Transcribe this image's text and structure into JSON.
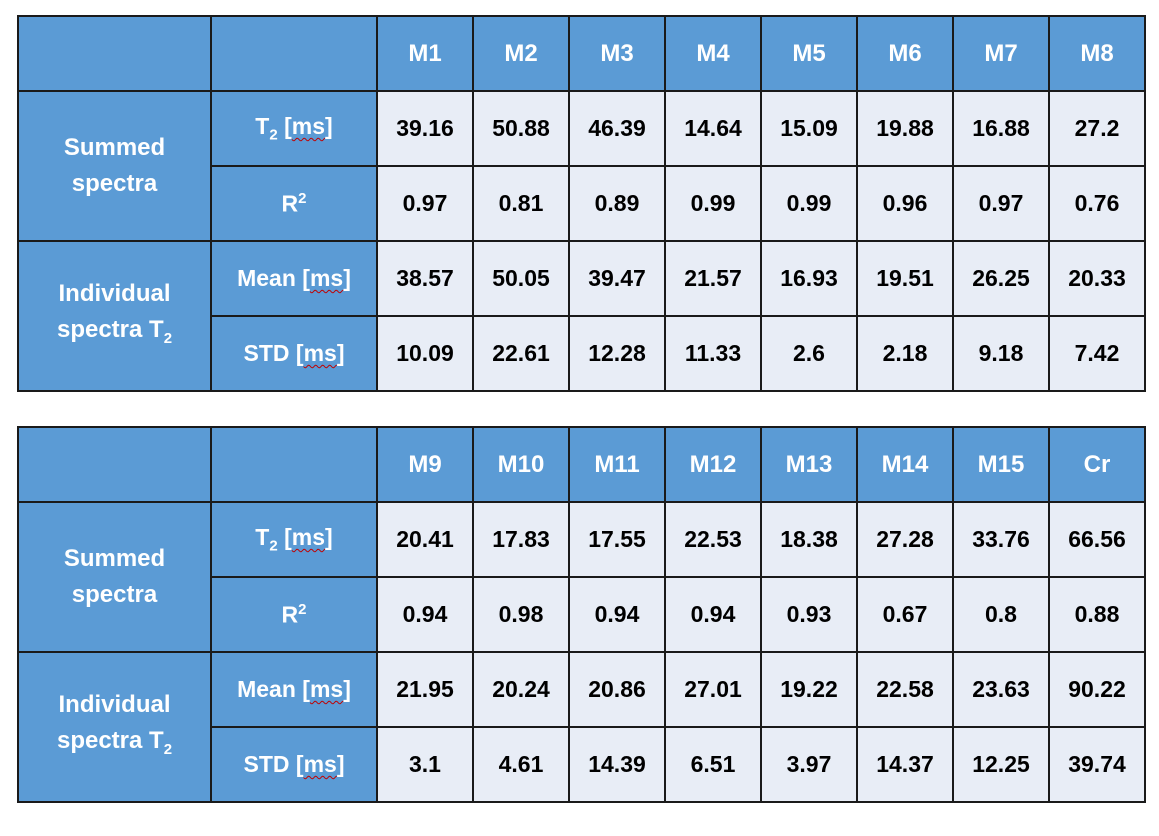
{
  "row_labels": {
    "summed": "Summed spectra",
    "individual": "Individual spectra T2",
    "t2": "T2 [ms]",
    "r2": "R2",
    "mean": "Mean [ms]",
    "std": "STD [ms]"
  },
  "tables": [
    {
      "columns": [
        "M1",
        "M2",
        "M3",
        "M4",
        "M5",
        "M6",
        "M7",
        "M8"
      ],
      "rows": {
        "t2": [
          "39.16",
          "50.88",
          "46.39",
          "14.64",
          "15.09",
          "19.88",
          "16.88",
          "27.2"
        ],
        "r2": [
          "0.97",
          "0.81",
          "0.89",
          "0.99",
          "0.99",
          "0.96",
          "0.97",
          "0.76"
        ],
        "mean": [
          "38.57",
          "50.05",
          "39.47",
          "21.57",
          "16.93",
          "19.51",
          "26.25",
          "20.33"
        ],
        "std": [
          "10.09",
          "22.61",
          "12.28",
          "11.33",
          "2.6",
          "2.18",
          "9.18",
          "7.42"
        ]
      }
    },
    {
      "columns": [
        "M9",
        "M10",
        "M11",
        "M12",
        "M13",
        "M14",
        "M15",
        "Cr"
      ],
      "rows": {
        "t2": [
          "20.41",
          "17.83",
          "17.55",
          "22.53",
          "18.38",
          "27.28",
          "33.76",
          "66.56"
        ],
        "r2": [
          "0.94",
          "0.98",
          "0.94",
          "0.94",
          "0.93",
          "0.67",
          "0.8",
          "0.88"
        ],
        "mean": [
          "21.95",
          "20.24",
          "20.86",
          "27.01",
          "19.22",
          "22.58",
          "23.63",
          "90.22"
        ],
        "std": [
          "3.1",
          "4.61",
          "14.39",
          "6.51",
          "3.97",
          "14.37",
          "12.25",
          "39.74"
        ]
      }
    }
  ],
  "colors": {
    "header": "#5b9bd5",
    "cell": "#e8edf6",
    "border": "#1a1a1a"
  }
}
